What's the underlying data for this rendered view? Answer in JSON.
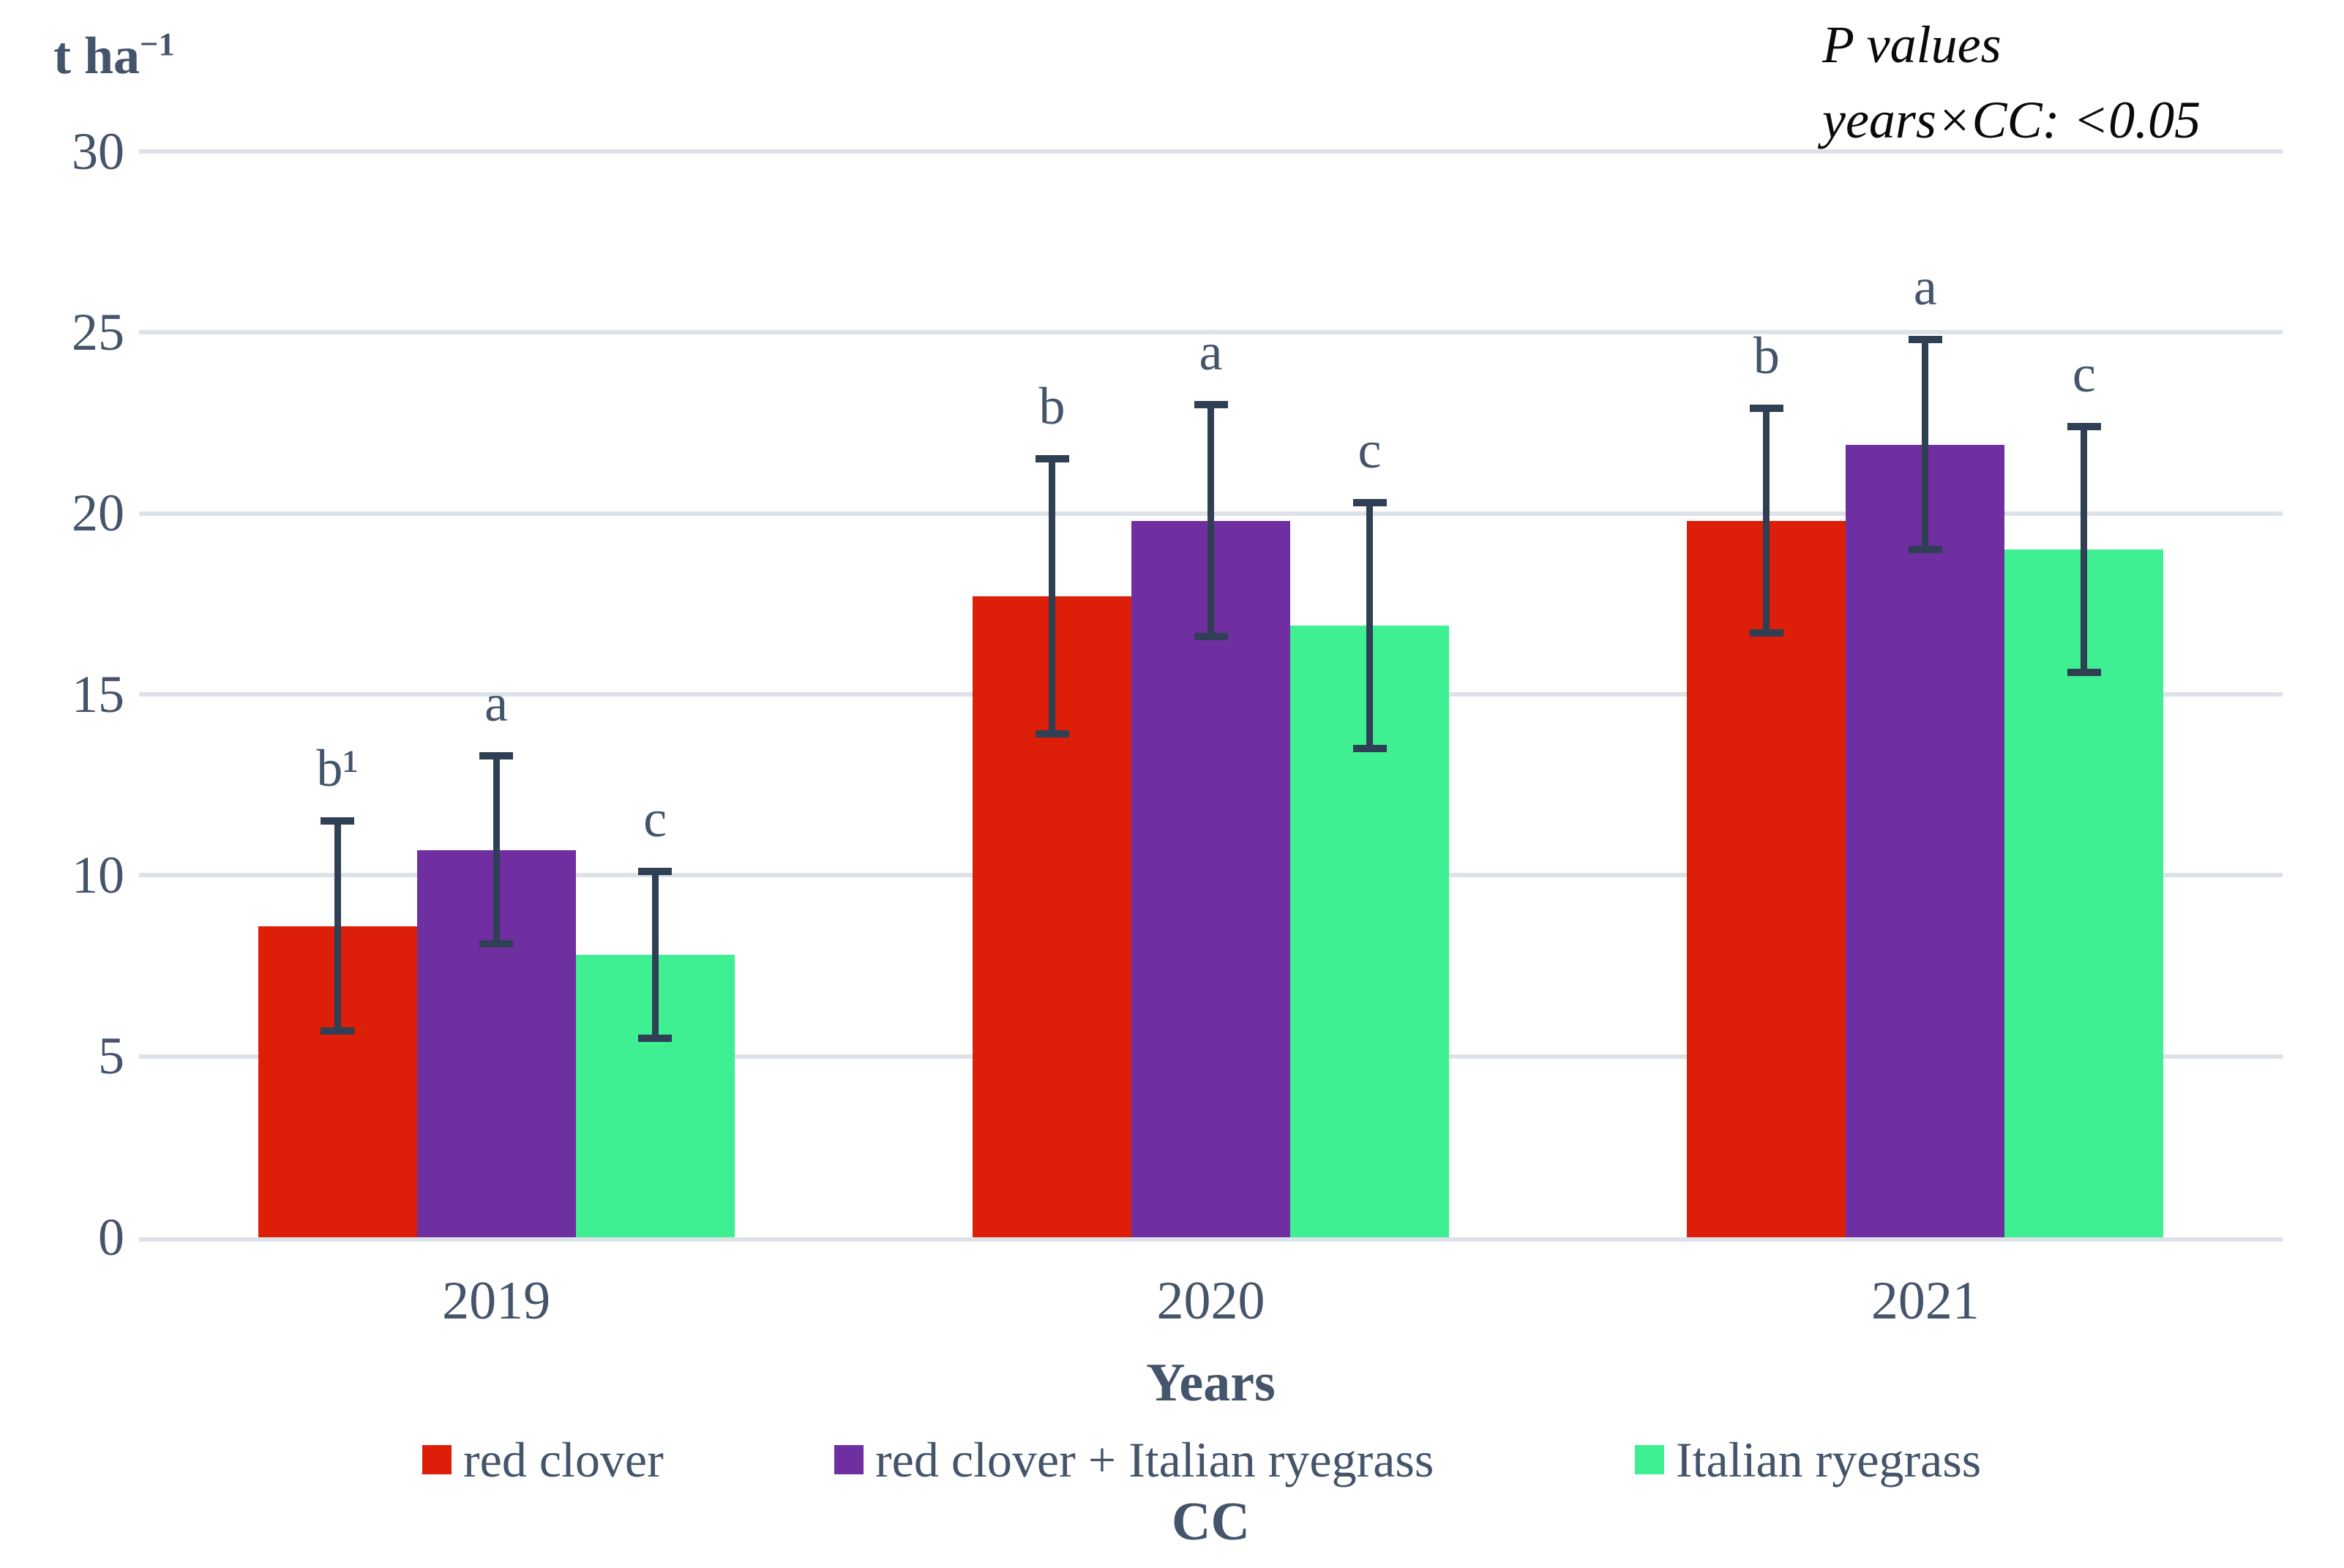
{
  "chart_data": {
    "type": "bar",
    "ylabel": "t ha⁻¹",
    "ylabel_base": "t ha",
    "ylabel_sup": "−1",
    "xlabel": "Years",
    "legend_title": "CC",
    "annotation": {
      "line1": "P values",
      "line2": "years×CC: <0.05"
    },
    "ylim": [
      0,
      30
    ],
    "yticks": [
      0,
      5,
      10,
      15,
      20,
      25,
      30
    ],
    "categories": [
      "2019",
      "2020",
      "2021"
    ],
    "grid": "horizontal",
    "legend_position": "bottom",
    "series": [
      {
        "key": "red-clover",
        "name": "red clover",
        "color": "#DD1E08",
        "values": [
          8.6,
          17.7,
          19.8
        ],
        "err_low": [
          5.7,
          13.9,
          16.7
        ],
        "err_high": [
          11.5,
          21.5,
          22.9
        ],
        "letters": [
          "b¹",
          "b",
          "b"
        ]
      },
      {
        "key": "red-clover-plus-italian-ryegrass",
        "name": "red clover + Italian ryegrass",
        "color": "#6F2FA0",
        "values": [
          10.7,
          19.8,
          21.9
        ],
        "err_low": [
          8.1,
          16.6,
          19.0
        ],
        "err_high": [
          13.3,
          23.0,
          24.8
        ],
        "letters": [
          "a",
          "a",
          "a"
        ]
      },
      {
        "key": "italian-ryegrass",
        "name": "Italian ryegrass",
        "color": "#3EF092",
        "values": [
          7.8,
          16.9,
          19.0
        ],
        "err_low": [
          5.5,
          13.5,
          15.6
        ],
        "err_high": [
          10.1,
          20.3,
          22.4
        ],
        "letters": [
          "c",
          "c",
          "c"
        ]
      }
    ],
    "colors": {
      "text": "#44546A",
      "gridline": "#DDE2E9",
      "error_bar": "#2F3F54",
      "annotation_text": "#0A0A0A",
      "background": "#FFFFFF"
    }
  }
}
